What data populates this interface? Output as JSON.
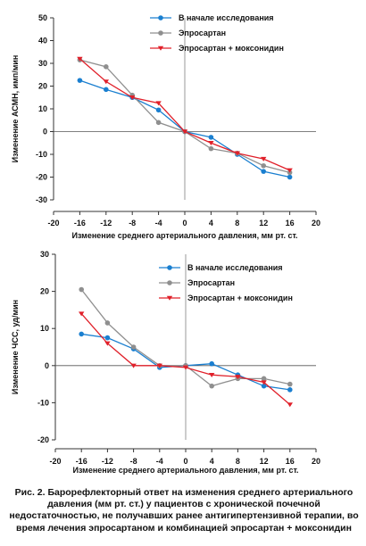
{
  "chart_data": [
    {
      "type": "line",
      "xlabel": "Изменение среднего артериального давления, мм рт. ст.",
      "ylabel": "Изменение АСМН, имп/мин",
      "xlim": [
        -20,
        20
      ],
      "ylim": [
        -30,
        50
      ],
      "xticks": [
        -20,
        -16,
        -12,
        -8,
        -4,
        0,
        4,
        8,
        12,
        16,
        20
      ],
      "yticks": [
        50,
        40,
        30,
        20,
        10,
        0,
        -10,
        -20,
        -30
      ],
      "grid": false,
      "legend": "top-right",
      "series": [
        {
          "name": "В начале исследования",
          "color": "#1a7fd0",
          "marker": "circle",
          "x": [
            -16,
            -12,
            -8,
            -4,
            0,
            4,
            8,
            12,
            16
          ],
          "y": [
            22.5,
            18.5,
            15,
            9.5,
            0,
            -2.5,
            -10,
            -17.5,
            -20
          ]
        },
        {
          "name": "Эпросартан",
          "color": "#8f8f8f",
          "marker": "circle",
          "x": [
            -16,
            -12,
            -8,
            -4,
            0,
            4,
            8,
            12,
            16
          ],
          "y": [
            31.5,
            28.5,
            16,
            4,
            0,
            -7.5,
            -9.5,
            -15,
            -18
          ]
        },
        {
          "name": "Эпросартан + моксонидин",
          "color": "#e0202a",
          "marker": "triangle",
          "x": [
            -16,
            -12,
            -8,
            -4,
            0,
            4,
            8,
            12,
            16
          ],
          "y": [
            32,
            22,
            15,
            12.5,
            0,
            -5,
            -9.5,
            -12,
            -17
          ]
        }
      ]
    },
    {
      "type": "line",
      "xlabel": "Изменение среднего артериального давления, мм рт. ст.",
      "ylabel": "Изменение ЧСС, уд/мин",
      "xlim": [
        -20,
        20
      ],
      "ylim": [
        -20,
        30
      ],
      "xticks": [
        -20,
        -16,
        -12,
        -8,
        -4,
        0,
        4,
        8,
        12,
        16,
        20
      ],
      "yticks": [
        30,
        20,
        10,
        0,
        -10,
        -20
      ],
      "grid": false,
      "legend": "top-right",
      "series": [
        {
          "name": "В начале исследования",
          "color": "#1a7fd0",
          "marker": "circle",
          "x": [
            -16,
            -12,
            -8,
            -4,
            0,
            4,
            8,
            12,
            16
          ],
          "y": [
            8.5,
            7.5,
            4.5,
            -0.5,
            0,
            0.5,
            -2.5,
            -5.5,
            -6.5
          ]
        },
        {
          "name": "Эпросартан",
          "color": "#8f8f8f",
          "marker": "circle",
          "x": [
            -16,
            -12,
            -8,
            -4,
            0,
            4,
            8,
            12,
            16
          ],
          "y": [
            20.5,
            11.5,
            5,
            0,
            0,
            -5.5,
            -3.5,
            -3.5,
            -5
          ]
        },
        {
          "name": "Эпросартан + моксонидин",
          "color": "#e0202a",
          "marker": "triangle",
          "x": [
            -16,
            -12,
            -8,
            -4,
            0,
            4,
            8,
            12,
            16
          ],
          "y": [
            14,
            6,
            0,
            0,
            -0.5,
            -2.5,
            -3,
            -4.5,
            -10.5
          ]
        }
      ]
    }
  ],
  "caption": "Рис. 2. Барорефлекторный ответ на изменения среднего артериального давления (мм рт. ст.) у пациентов с хронической почечной недостаточностью, не получавших ранее антигипертензивной терапии, во время лечения эпросартаном и комбинацией эпросартан + моксонидин"
}
